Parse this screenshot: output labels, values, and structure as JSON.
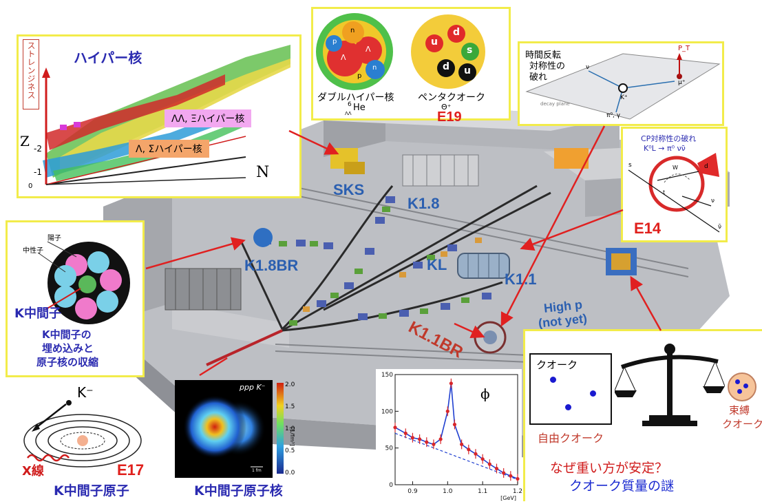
{
  "hypernuclei": {
    "title": "ハイパー核",
    "strangeness_axis": "ストレンジネス",
    "z_axis": "Z",
    "n_axis": "N",
    "ticks": [
      "-2",
      "-1",
      "0"
    ],
    "double_label": "ΛΛ, Ξハイパー核",
    "single_label": "Λ, Σハイパー核"
  },
  "e19": {
    "double_hyper_caption": "ダブルハイパー核",
    "he_label": "He",
    "he_prefix": "6",
    "he_sub": "ΛΛ",
    "pentaquark_caption": "ペンタクオーク",
    "theta_label": "Θ⁺",
    "exp_id": "E19",
    "quarks": [
      "u",
      "d",
      "d",
      "s",
      "u"
    ],
    "nucleons": [
      "p",
      "n",
      "Λ",
      "Λ",
      "n",
      "p"
    ]
  },
  "trv": {
    "caption_lines": [
      "時間反転",
      "対称性の",
      "破れ"
    ],
    "labels": [
      "P_T",
      "μ⁺",
      "K⁺",
      "ν",
      "π⁰, γ",
      "decay plane"
    ]
  },
  "e14": {
    "caption": "CP対称性の破れ",
    "decay": "K⁰L → π⁰ νν̄",
    "exp_id": "E14",
    "labels": [
      "s",
      "d",
      "ν",
      "ν̄",
      "W",
      "t"
    ]
  },
  "beamlines": {
    "sks": "SKS",
    "k18": "K1.8",
    "k18br": "K1.8BR",
    "kl": "KL",
    "k11": "K1.1",
    "highp": "High p",
    "notyet": "(not yet)",
    "k11br": "K1.1BR"
  },
  "kmeson_nucleus": {
    "proton": "陽子",
    "neutron": "中性子",
    "kmeson": "K中間子",
    "caption_lines": [
      "K中間子の",
      "埋め込みと",
      "原子核の収縮"
    ]
  },
  "e17": {
    "kminus": "K⁻",
    "xray": "X線",
    "exp_id": "E17",
    "caption": "K中間子原子"
  },
  "pppk": {
    "title": "ppp K⁻",
    "colorbar_ticks": [
      "2.0",
      "1.5",
      "1.0",
      "0.5",
      "0.0"
    ],
    "colorbar_unit": "[1/fm³]",
    "scale_label": "1 fm",
    "caption": "K中間子原子核"
  },
  "phi_spectrum": {
    "symbol": "ϕ",
    "unit": "[GeV]"
  },
  "quark_mass": {
    "free_box_label": "クオーク",
    "free_caption": "自由クオーク",
    "bound_caption_lines": [
      "束縛",
      "クオーク"
    ],
    "question": "なぜ重い方が安定？",
    "mystery": "クオーク質量の謎"
  },
  "chart_data": {
    "type": "scatter",
    "x": [
      0.85,
      0.88,
      0.9,
      0.92,
      0.94,
      0.96,
      0.98,
      1.0,
      1.01,
      1.02,
      1.04,
      1.06,
      1.08,
      1.1,
      1.12,
      1.14,
      1.16,
      1.18,
      1.2
    ],
    "y": [
      78,
      70,
      64,
      62,
      58,
      55,
      62,
      100,
      138,
      82,
      55,
      48,
      42,
      35,
      28,
      22,
      16,
      12,
      8
    ],
    "xlim": [
      0.85,
      1.2
    ],
    "ylim": [
      0,
      150
    ],
    "xticks": [
      0.9,
      1.0,
      1.1,
      1.2
    ],
    "yticks": [
      0,
      50,
      100,
      150
    ],
    "xlabel": "[GeV]",
    "ylabel": "",
    "title": "ϕ",
    "grid": false,
    "colors": {
      "points": "#d8262a",
      "fit": "#1f3fd0",
      "background_fit": "#1f3fd0"
    }
  }
}
